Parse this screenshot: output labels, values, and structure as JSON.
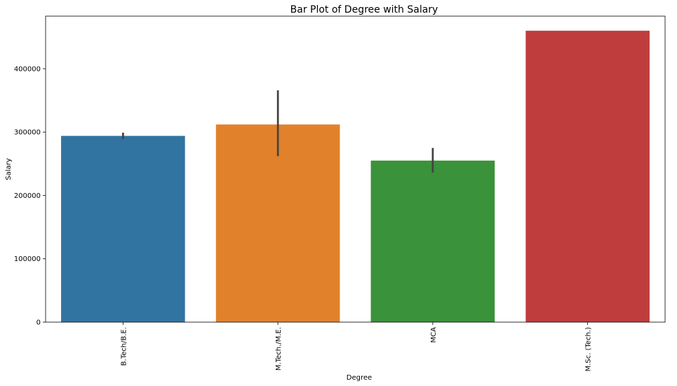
{
  "chart_data": {
    "type": "bar",
    "title": "Bar Plot of Degree with Salary",
    "xlabel": "Degree",
    "ylabel": "Salary",
    "categories": [
      "B.Tech/B.E.",
      "M.Tech./M.E.",
      "MCA",
      "M.Sc. (Tech.)"
    ],
    "values": [
      294000,
      312000,
      255000,
      460000
    ],
    "error_low": [
      289000,
      262000,
      236000,
      null
    ],
    "error_high": [
      299000,
      366000,
      275000,
      null
    ],
    "colors": [
      "#3274a1",
      "#e1812c",
      "#3a923a",
      "#c03d3e"
    ],
    "ylim": [
      0,
      483000
    ],
    "yticks": [
      0,
      100000,
      200000,
      300000,
      400000
    ],
    "ytick_labels": [
      "0",
      "100000",
      "200000",
      "300000",
      "400000"
    ],
    "grid": false,
    "legend": "none"
  }
}
